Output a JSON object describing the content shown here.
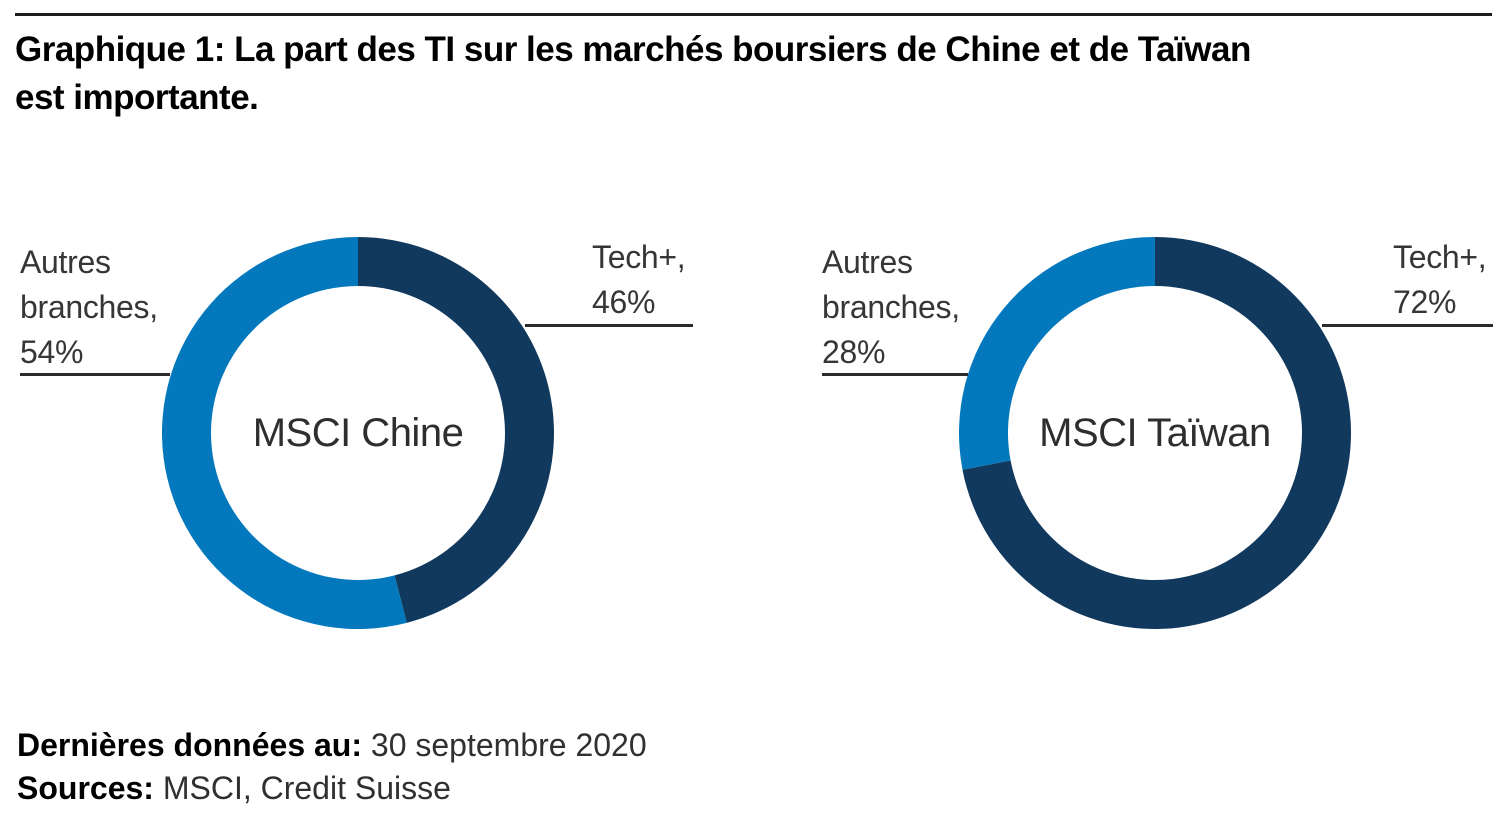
{
  "page": {
    "title_line1": "Graphique 1: La part des TI sur les marchés boursiers de Chine et de Taïwan",
    "title_line2": "est importante."
  },
  "colors": {
    "tech_dark_navy": "#11395E",
    "others_light_blue": "#0478BD",
    "rule": "#1d1d1b",
    "callout_line": "#2b2b2b"
  },
  "charts": [
    {
      "center_label": "MSCI Chine",
      "callout_left": {
        "l1": "Autres",
        "l2": "branches,",
        "l3": "54%"
      },
      "callout_right": {
        "l1": "Tech+,",
        "l2": "46%"
      }
    },
    {
      "center_label": "MSCI Taïwan",
      "callout_left": {
        "l1": "Autres",
        "l2": "branches,",
        "l3": "28%"
      },
      "callout_right": {
        "l1": "Tech+,",
        "l2": "72%"
      }
    }
  ],
  "footer": {
    "last_data_label": "Dernières données au:",
    "last_data_value": "30 septembre 2020",
    "sources_label": "Sources:",
    "sources_value": "MSCI, Credit Suisse"
  },
  "chart_data": [
    {
      "type": "pie",
      "subtype": "donut",
      "title": "MSCI Chine",
      "labels": [
        "Tech+",
        "Autres branches"
      ],
      "values": [
        46,
        54
      ],
      "unit": "%",
      "colors": [
        "#11395E",
        "#0478BD"
      ],
      "start_angle": "top",
      "direction": "clockwise",
      "inner_radius_ratio": 0.75,
      "legend_position": "callouts"
    },
    {
      "type": "pie",
      "subtype": "donut",
      "title": "MSCI Taïwan",
      "labels": [
        "Tech+",
        "Autres branches"
      ],
      "values": [
        72,
        28
      ],
      "unit": "%",
      "colors": [
        "#11395E",
        "#0478BD"
      ],
      "start_angle": "top",
      "direction": "clockwise",
      "inner_radius_ratio": 0.75,
      "legend_position": "callouts"
    }
  ]
}
